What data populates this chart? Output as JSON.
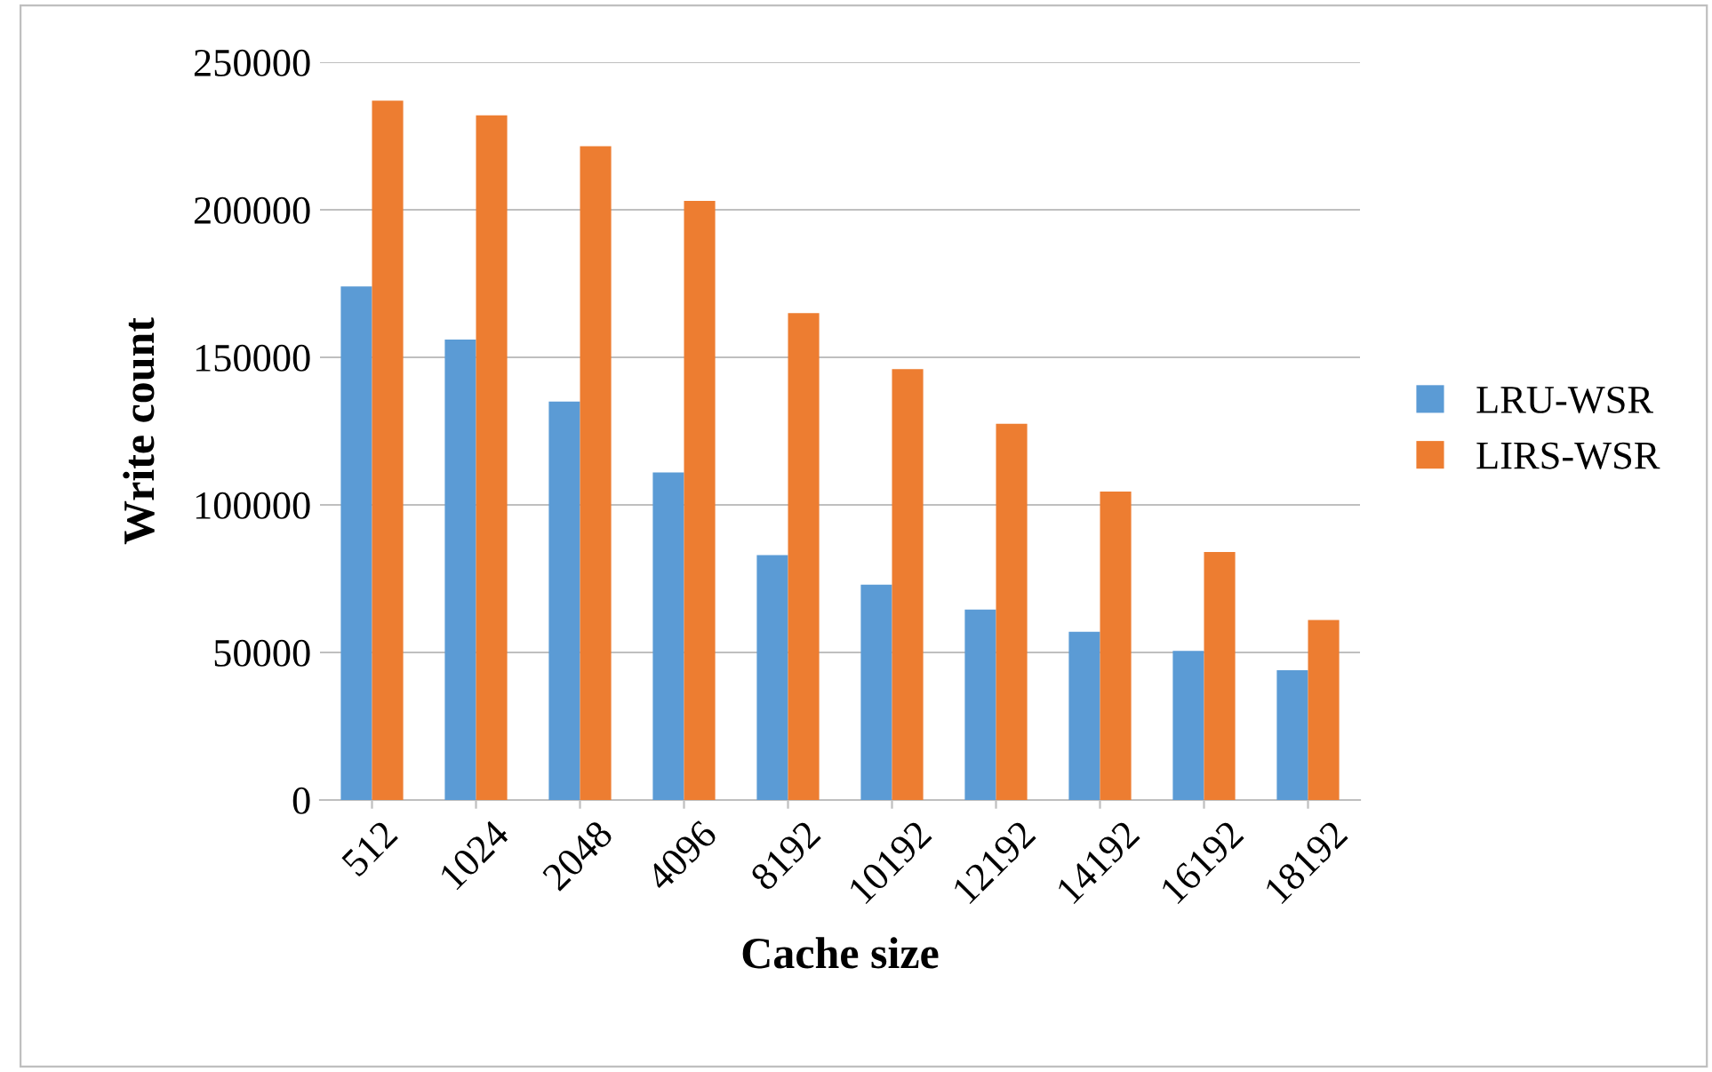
{
  "chart_data": {
    "type": "bar",
    "xlabel": "Cache size",
    "ylabel": "Write count",
    "categories": [
      "512",
      "1024",
      "2048",
      "4096",
      "8192",
      "10192",
      "12192",
      "14192",
      "16192",
      "18192"
    ],
    "series": [
      {
        "name": "LRU-WSR",
        "color": "#5b9bd5",
        "values": [
          174000,
          156000,
          135000,
          111000,
          83000,
          73000,
          64500,
          57000,
          50500,
          44000
        ]
      },
      {
        "name": "LIRS-WSR",
        "color": "#ed7d31",
        "values": [
          237000,
          232000,
          221500,
          203000,
          165000,
          146000,
          127500,
          104500,
          84000,
          61000
        ]
      }
    ],
    "ylim": [
      0,
      250000
    ],
    "yticks": [
      0,
      50000,
      100000,
      150000,
      200000,
      250000
    ],
    "grid": "y",
    "legend": "right"
  }
}
